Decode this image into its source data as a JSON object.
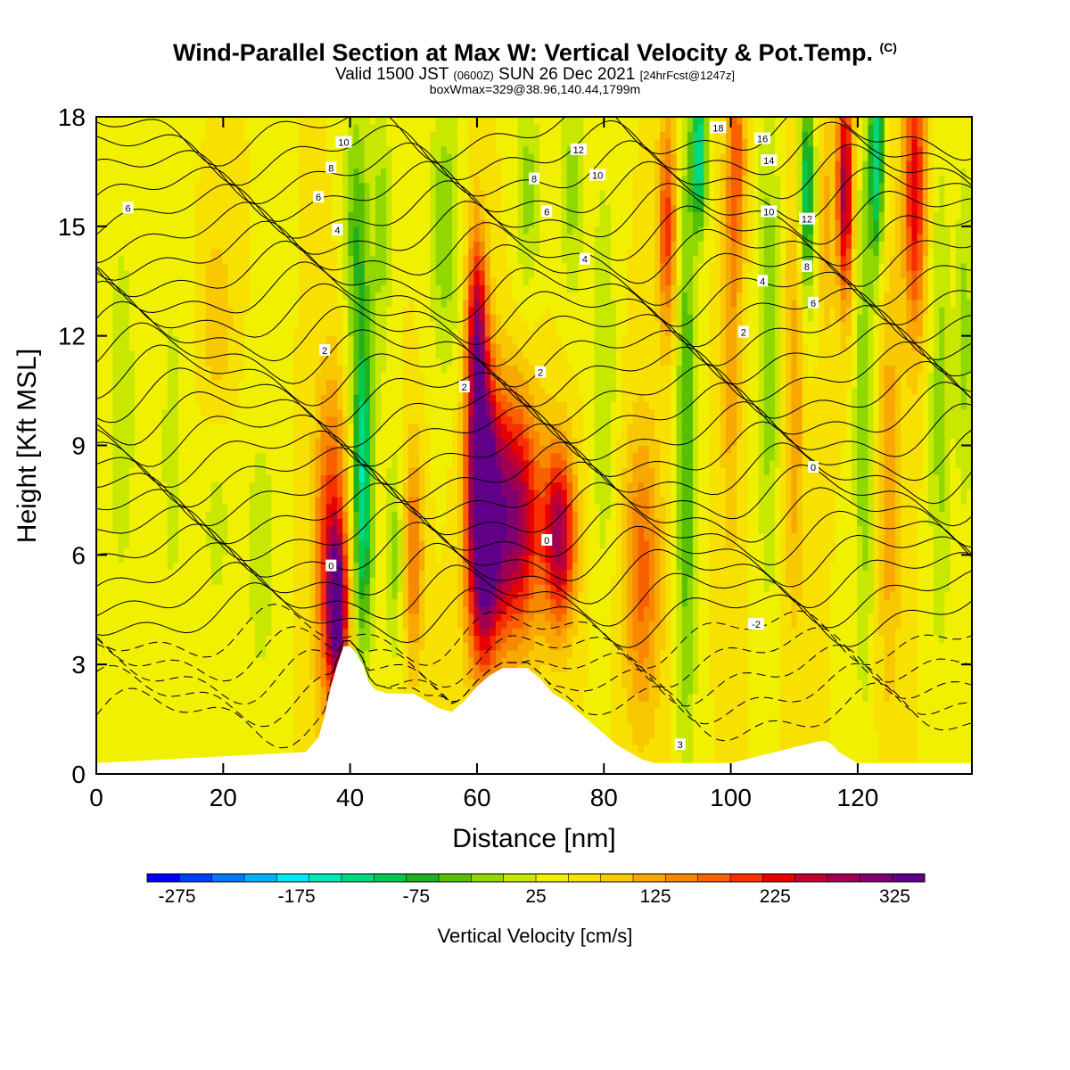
{
  "header": {
    "title": "Wind-Parallel Section at Max W: Vertical Velocity & Pot.Temp.",
    "copyright": "(C)",
    "valid_prefix": "Valid 1500 JST",
    "valid_z": "(0600Z)",
    "valid_date": "SUN 26 Dec 2021",
    "forecast": "[24hrFcst@1247z]",
    "boxwmax": "boxWmax=329@38.96,140.44,1799m"
  },
  "chart_data": {
    "type": "heatmap",
    "xlabel": "Distance [nm]",
    "ylabel": "Height [Kft MSL]",
    "xlim": [
      0,
      138
    ],
    "ylim": [
      0,
      18
    ],
    "x_ticks": [
      0,
      20,
      40,
      60,
      80,
      100,
      120
    ],
    "y_ticks": [
      0,
      3,
      6,
      9,
      12,
      15,
      18
    ],
    "colorbar": {
      "title": "Vertical Velocity [cm/s]",
      "min": -300,
      "max": 350,
      "step": 25,
      "labels": [
        "-275",
        "-175",
        "-75",
        "25",
        "125",
        "225",
        "325"
      ],
      "colors": [
        "#0000f8",
        "#0040f8",
        "#0078f8",
        "#00b0f8",
        "#00e8f8",
        "#00e8b8",
        "#00d880",
        "#00c850",
        "#20b020",
        "#58c000",
        "#90d800",
        "#c8e800",
        "#f0f000",
        "#f8e000",
        "#f8c800",
        "#f8a800",
        "#f88800",
        "#f86000",
        "#f83000",
        "#e80000",
        "#c00030",
        "#a00050",
        "#800070",
        "#600088"
      ]
    },
    "background_value": 25,
    "velocity_features": [
      {
        "x": 4,
        "height": 10,
        "width": 2.5,
        "depth": 6,
        "value": -40
      },
      {
        "x": 12,
        "height": 9,
        "width": 3,
        "depth": 8,
        "value": -30
      },
      {
        "x": 19,
        "height": 8,
        "width": 3,
        "depth": 5,
        "value": -35
      },
      {
        "x": 26,
        "height": 6,
        "width": 3,
        "depth": 5,
        "value": -35
      },
      {
        "x": 19,
        "height": 12,
        "width": 3,
        "depth": 3,
        "value": 60
      },
      {
        "x": 37,
        "height": 6,
        "width": 2.6,
        "depth": 4.5,
        "value": 160
      },
      {
        "x": 38,
        "height": 4.5,
        "width": 1.4,
        "depth": 2,
        "value": 210
      },
      {
        "x": 42,
        "height": 8,
        "width": 1.6,
        "depth": 4.5,
        "value": -180
      },
      {
        "x": 41,
        "height": 15,
        "width": 2,
        "depth": 3.5,
        "value": -90
      },
      {
        "x": 45,
        "height": 15,
        "width": 1.5,
        "depth": 4,
        "value": -60
      },
      {
        "x": 47,
        "height": 6,
        "width": 1.5,
        "depth": 3,
        "value": -60
      },
      {
        "x": 50,
        "height": 6,
        "width": 1.5,
        "depth": 3,
        "value": 110
      },
      {
        "x": 55,
        "height": 15,
        "width": 2.5,
        "depth": 4,
        "value": -70
      },
      {
        "x": 61,
        "height": 7,
        "width": 2.6,
        "depth": 3.8,
        "value": 330
      },
      {
        "x": 60,
        "height": 12,
        "width": 1.6,
        "depth": 3,
        "value": 200
      },
      {
        "x": 66,
        "height": 7,
        "width": 4,
        "depth": 3.3,
        "value": 230
      },
      {
        "x": 73,
        "height": 6.5,
        "width": 2.5,
        "depth": 2.5,
        "value": 210
      },
      {
        "x": 68,
        "height": 16,
        "width": 2,
        "depth": 3,
        "value": -60
      },
      {
        "x": 75,
        "height": 16,
        "width": 2,
        "depth": 3,
        "value": -60
      },
      {
        "x": 80,
        "height": 11,
        "width": 2,
        "depth": 6,
        "value": -50
      },
      {
        "x": 86,
        "height": 5.5,
        "width": 3,
        "depth": 4,
        "value": 110
      },
      {
        "x": 90,
        "height": 15,
        "width": 1.5,
        "depth": 3,
        "value": 140
      },
      {
        "x": 93,
        "height": 9,
        "width": 1.6,
        "depth": 9,
        "value": -100
      },
      {
        "x": 95,
        "height": 17,
        "width": 1.2,
        "depth": 2,
        "value": -180
      },
      {
        "x": 100,
        "height": 12,
        "width": 1.5,
        "depth": 6,
        "value": 70
      },
      {
        "x": 101,
        "height": 17,
        "width": 1.4,
        "depth": 3,
        "value": 100
      },
      {
        "x": 106,
        "height": 12,
        "width": 1.8,
        "depth": 7,
        "value": -70
      },
      {
        "x": 110,
        "height": 10,
        "width": 1.6,
        "depth": 6,
        "value": 70
      },
      {
        "x": 112,
        "height": 16,
        "width": 1.2,
        "depth": 3,
        "value": -150
      },
      {
        "x": 115,
        "height": 15,
        "width": 1.2,
        "depth": 3,
        "value": 60
      },
      {
        "x": 118,
        "height": 16,
        "width": 1.3,
        "depth": 3,
        "value": 220
      },
      {
        "x": 121,
        "height": 10,
        "width": 1.6,
        "depth": 8,
        "value": -70
      },
      {
        "x": 123,
        "height": 17,
        "width": 1.2,
        "depth": 3,
        "value": -170
      },
      {
        "x": 125,
        "height": 8,
        "width": 1.8,
        "depth": 6,
        "value": 70
      },
      {
        "x": 129,
        "height": 16,
        "width": 1.8,
        "depth": 4,
        "value": 170
      },
      {
        "x": 133,
        "height": 10,
        "width": 1.8,
        "depth": 7,
        "value": -60
      },
      {
        "x": 137,
        "height": 12,
        "width": 1.5,
        "depth": 5,
        "value": -60
      }
    ],
    "terrain": {
      "x": [
        0,
        33,
        35,
        36,
        37,
        38,
        39,
        40,
        41,
        42,
        43,
        44,
        46,
        48,
        50,
        52,
        54,
        56,
        58,
        60,
        62,
        64,
        66,
        68,
        70,
        72,
        74,
        76,
        78,
        80,
        82,
        84,
        86,
        88,
        90,
        100,
        107,
        114,
        115,
        116,
        117,
        118,
        119,
        120,
        125,
        138
      ],
      "height": [
        0.3,
        0.6,
        1.0,
        1.6,
        2.4,
        3.0,
        3.5,
        3.5,
        3.3,
        3.0,
        2.5,
        2.3,
        2.2,
        2.2,
        2.2,
        2.0,
        1.8,
        1.7,
        2.0,
        2.4,
        2.7,
        2.9,
        2.9,
        2.9,
        2.6,
        2.2,
        2.0,
        1.7,
        1.4,
        1.1,
        0.8,
        0.6,
        0.4,
        0.3,
        0.3,
        0.3,
        0.6,
        0.9,
        0.9,
        0.8,
        0.6,
        0.5,
        0.4,
        0.3,
        0.3,
        0.3
      ]
    },
    "contour_labels": [
      {
        "text": "10",
        "x": 39,
        "height": 17.3
      },
      {
        "text": "8",
        "x": 37,
        "height": 16.6
      },
      {
        "text": "6",
        "x": 5,
        "height": 15.5
      },
      {
        "text": "6",
        "x": 35,
        "height": 15.8
      },
      {
        "text": "4",
        "x": 38,
        "height": 14.9
      },
      {
        "text": "2",
        "x": 36,
        "height": 11.6
      },
      {
        "text": "2",
        "x": 58,
        "height": 10.6
      },
      {
        "text": "2",
        "x": 70,
        "height": 11.0
      },
      {
        "text": "0",
        "x": 37,
        "height": 5.7
      },
      {
        "text": "0",
        "x": 71,
        "height": 6.4
      },
      {
        "text": "0",
        "x": 113,
        "height": 8.4
      },
      {
        "text": "-2",
        "x": 104,
        "height": 4.1
      },
      {
        "text": "4",
        "x": 77,
        "height": 14.1
      },
      {
        "text": "6",
        "x": 71,
        "height": 15.4
      },
      {
        "text": "8",
        "x": 69,
        "height": 16.3
      },
      {
        "text": "10",
        "x": 79,
        "height": 16.4
      },
      {
        "text": "12",
        "x": 76,
        "height": 17.1
      },
      {
        "text": "18",
        "x": 98,
        "height": 17.7
      },
      {
        "text": "16",
        "x": 105,
        "height": 17.4
      },
      {
        "text": "14",
        "x": 106,
        "height": 16.8
      },
      {
        "text": "10",
        "x": 106,
        "height": 15.4
      },
      {
        "text": "12",
        "x": 112,
        "height": 15.2
      },
      {
        "text": "8",
        "x": 112,
        "height": 13.9
      },
      {
        "text": "4",
        "x": 105,
        "height": 13.5
      },
      {
        "text": "6",
        "x": 113,
        "height": 12.9
      },
      {
        "text": "2",
        "x": 102,
        "height": 12.1
      },
      {
        "text": "3",
        "x": 92,
        "height": 0.8
      }
    ]
  }
}
